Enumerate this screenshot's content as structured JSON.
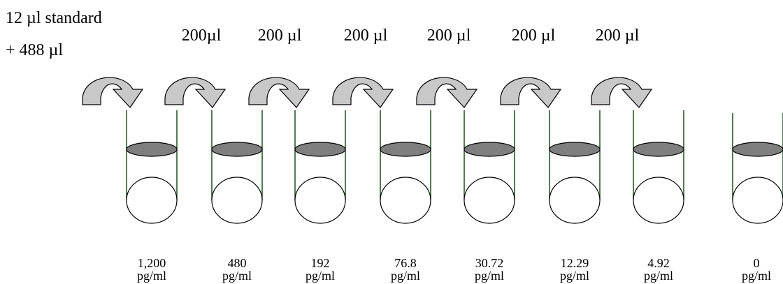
{
  "start_label": {
    "line1": "12 µl standard",
    "line2": "+ 488 µl"
  },
  "transfers": [
    "200µl",
    "200 µl",
    "200 µl",
    "200 µl",
    "200 µl",
    "200 µl"
  ],
  "tubes": [
    {
      "value": "1,200",
      "unit": "pg/ml"
    },
    {
      "value": "480",
      "unit": "pg/ml"
    },
    {
      "value": "192",
      "unit": "pg/ml"
    },
    {
      "value": "76.8",
      "unit": "pg/ml"
    },
    {
      "value": "30.72",
      "unit": "pg/ml"
    },
    {
      "value": "12.29",
      "unit": "pg/ml"
    },
    {
      "value": "4.92",
      "unit": "pg/ml"
    },
    {
      "value": "0",
      "unit": "pg/ml"
    }
  ],
  "colors": {
    "tube_wall": "#1f4d1f",
    "liquid": "#7f7f7f",
    "arrow_fill": "#c8c8c8",
    "outline": "#000000"
  }
}
